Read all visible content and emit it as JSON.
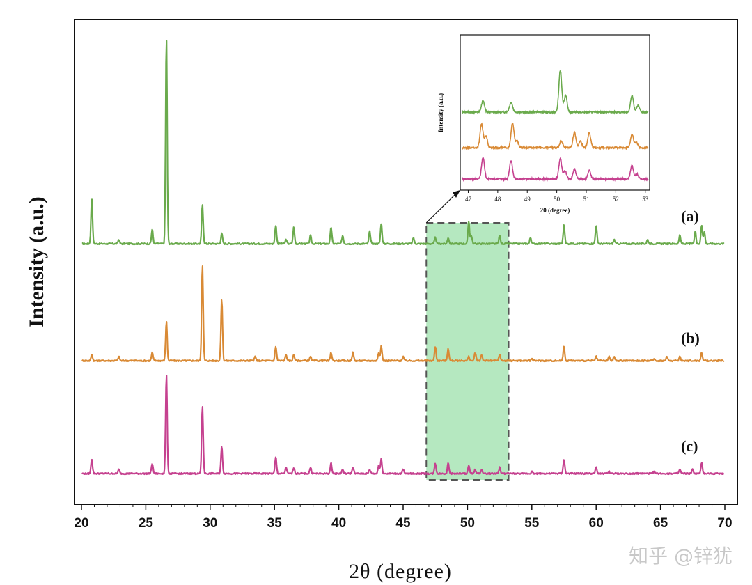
{
  "chart_data": {
    "type": "line",
    "title": "",
    "xlabel": "2θ (degree)",
    "ylabel": "Intensity (a.u.)",
    "xlim": [
      20,
      70
    ],
    "xticks": [
      20,
      25,
      30,
      35,
      40,
      45,
      50,
      55,
      60,
      65,
      70
    ],
    "series": [
      {
        "name": "(a)",
        "color": "#6aaa4c",
        "baseline": 1.0,
        "peaks": [
          [
            20.8,
            0.22
          ],
          [
            22.9,
            0.02
          ],
          [
            25.5,
            0.07
          ],
          [
            26.6,
            1.0
          ],
          [
            29.4,
            0.19
          ],
          [
            30.9,
            0.05
          ],
          [
            35.1,
            0.09
          ],
          [
            35.9,
            0.02
          ],
          [
            36.5,
            0.08
          ],
          [
            37.8,
            0.04
          ],
          [
            39.4,
            0.08
          ],
          [
            40.3,
            0.04
          ],
          [
            42.4,
            0.06
          ],
          [
            43.3,
            0.1
          ],
          [
            45.8,
            0.03
          ],
          [
            47.5,
            0.03
          ],
          [
            48.5,
            0.03
          ],
          [
            50.1,
            0.11
          ],
          [
            50.3,
            0.04
          ],
          [
            52.5,
            0.04
          ],
          [
            54.9,
            0.03
          ],
          [
            57.5,
            0.09
          ],
          [
            60.0,
            0.09
          ],
          [
            61.4,
            0.02
          ],
          [
            64.0,
            0.02
          ],
          [
            66.5,
            0.04
          ],
          [
            67.7,
            0.06
          ],
          [
            68.2,
            0.09
          ],
          [
            68.4,
            0.06
          ]
        ]
      },
      {
        "name": "(b)",
        "color": "#d98a35",
        "baseline": 0.5,
        "peaks": [
          [
            20.8,
            0.03
          ],
          [
            22.9,
            0.02
          ],
          [
            25.5,
            0.04
          ],
          [
            26.6,
            0.19
          ],
          [
            29.4,
            0.47
          ],
          [
            30.9,
            0.3
          ],
          [
            33.5,
            0.02
          ],
          [
            35.1,
            0.07
          ],
          [
            35.9,
            0.03
          ],
          [
            36.5,
            0.03
          ],
          [
            37.8,
            0.02
          ],
          [
            39.4,
            0.04
          ],
          [
            41.1,
            0.04
          ],
          [
            43.1,
            0.04
          ],
          [
            43.3,
            0.07
          ],
          [
            45.0,
            0.02
          ],
          [
            47.5,
            0.07
          ],
          [
            48.5,
            0.06
          ],
          [
            50.1,
            0.02
          ],
          [
            50.6,
            0.04
          ],
          [
            51.1,
            0.03
          ],
          [
            52.5,
            0.03
          ],
          [
            55.0,
            0.01
          ],
          [
            57.5,
            0.07
          ],
          [
            60.0,
            0.02
          ],
          [
            61.0,
            0.02
          ],
          [
            61.4,
            0.02
          ],
          [
            64.5,
            0.01
          ],
          [
            65.5,
            0.02
          ],
          [
            66.5,
            0.02
          ],
          [
            68.2,
            0.04
          ]
        ]
      },
      {
        "name": "(c)",
        "color": "#c5418f",
        "baseline": 0.0,
        "peaks": [
          [
            20.8,
            0.07
          ],
          [
            22.9,
            0.02
          ],
          [
            25.5,
            0.05
          ],
          [
            26.6,
            0.48
          ],
          [
            29.4,
            0.33
          ],
          [
            30.9,
            0.13
          ],
          [
            35.1,
            0.08
          ],
          [
            35.9,
            0.03
          ],
          [
            36.5,
            0.03
          ],
          [
            37.8,
            0.03
          ],
          [
            39.4,
            0.05
          ],
          [
            40.3,
            0.02
          ],
          [
            41.1,
            0.03
          ],
          [
            42.4,
            0.02
          ],
          [
            43.1,
            0.04
          ],
          [
            43.3,
            0.07
          ],
          [
            45.0,
            0.02
          ],
          [
            47.5,
            0.05
          ],
          [
            48.5,
            0.05
          ],
          [
            50.1,
            0.04
          ],
          [
            50.6,
            0.02
          ],
          [
            51.1,
            0.02
          ],
          [
            52.5,
            0.03
          ],
          [
            55.0,
            0.01
          ],
          [
            57.5,
            0.07
          ],
          [
            60.0,
            0.03
          ],
          [
            61.0,
            0.01
          ],
          [
            64.5,
            0.01
          ],
          [
            66.5,
            0.02
          ],
          [
            67.5,
            0.02
          ],
          [
            68.2,
            0.05
          ]
        ]
      }
    ],
    "highlight_region": {
      "x_range": [
        46.8,
        53.2
      ],
      "color": "#b5e8c0",
      "border_style": "dashed",
      "border_color": "#555555"
    },
    "inset": {
      "xlabel": "2θ (degree)",
      "ylabel": "Intensity (a.u.)",
      "xlim": [
        46.8,
        53.1
      ],
      "xticks": [
        47,
        48,
        49,
        50,
        51,
        52,
        53
      ],
      "series": [
        {
          "name": "(a)",
          "color": "#6aaa4c",
          "baseline": 2.0,
          "peaks": [
            [
              47.5,
              0.35
            ],
            [
              48.45,
              0.3
            ],
            [
              50.12,
              1.25
            ],
            [
              50.3,
              0.5
            ],
            [
              52.55,
              0.5
            ],
            [
              52.75,
              0.2
            ]
          ]
        },
        {
          "name": "(b)",
          "color": "#d98a35",
          "baseline": 1.0,
          "peaks": [
            [
              47.45,
              0.7
            ],
            [
              47.6,
              0.35
            ],
            [
              48.5,
              0.75
            ],
            [
              48.65,
              0.2
            ],
            [
              50.15,
              0.2
            ],
            [
              50.6,
              0.45
            ],
            [
              50.8,
              0.2
            ],
            [
              51.1,
              0.45
            ],
            [
              52.55,
              0.4
            ],
            [
              52.7,
              0.15
            ]
          ]
        },
        {
          "name": "(c)",
          "color": "#c5418f",
          "baseline": 0.0,
          "peaks": [
            [
              47.5,
              0.65
            ],
            [
              48.45,
              0.55
            ],
            [
              50.12,
              0.6
            ],
            [
              50.28,
              0.25
            ],
            [
              50.6,
              0.3
            ],
            [
              51.1,
              0.25
            ],
            [
              52.55,
              0.4
            ],
            [
              52.72,
              0.15
            ]
          ]
        }
      ]
    },
    "series_labels": [
      "(a)",
      "(b)",
      "(c)"
    ]
  },
  "watermark": "知乎 @锌犹"
}
